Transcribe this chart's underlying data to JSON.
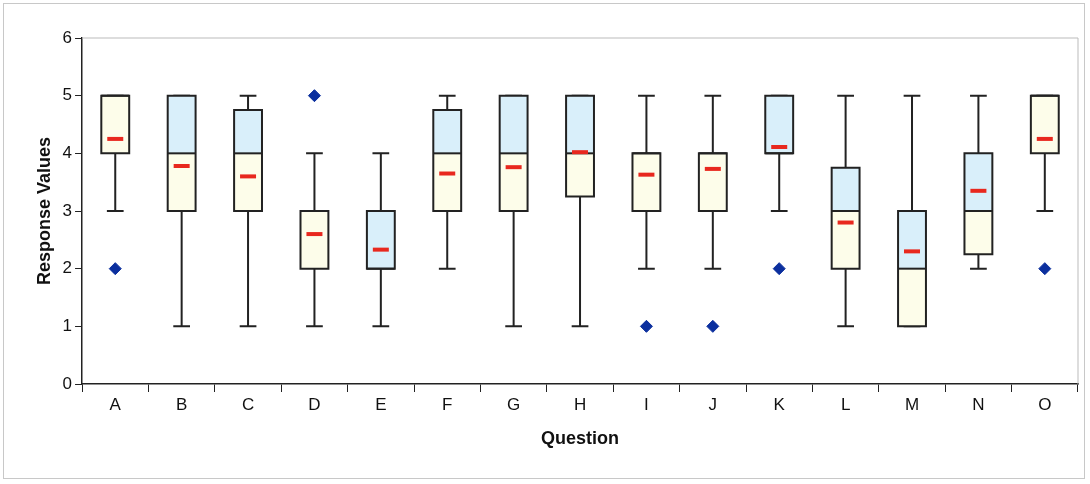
{
  "chart_data": {
    "type": "box",
    "xlabel": "Question",
    "ylabel": "Response Values",
    "categories": [
      "A",
      "B",
      "C",
      "D",
      "E",
      "F",
      "G",
      "H",
      "I",
      "J",
      "K",
      "L",
      "M",
      "N",
      "O"
    ],
    "ylim": [
      0,
      6
    ],
    "yticks": [
      0,
      1,
      2,
      3,
      4,
      5,
      6
    ],
    "grid": false,
    "legend": false,
    "series": [
      {
        "color": "#fdfdea",
        "boxes": [
          {
            "low": 3,
            "q1": 4,
            "median": 5,
            "q3": 5,
            "high": 5,
            "mean": 4.25,
            "outliers": [
              2
            ]
          },
          {
            "low": 1,
            "q1": 3,
            "median": 4,
            "q3": 5,
            "high": 5,
            "mean": 3.78
          },
          {
            "low": 1,
            "q1": 3,
            "median": 4,
            "q3": 4.75,
            "high": 5,
            "mean": 3.6
          },
          {
            "low": 1,
            "q1": 2,
            "median": 3,
            "q3": 3,
            "high": 4,
            "mean": 2.6,
            "outliers": [
              5
            ]
          },
          {
            "low": 1,
            "q1": 2,
            "median": 2,
            "q3": 3,
            "high": 4,
            "mean": 2.33
          },
          {
            "low": 2,
            "q1": 3,
            "median": 4,
            "q3": 4.75,
            "high": 5,
            "mean": 3.65
          },
          {
            "low": 1,
            "q1": 3,
            "median": 4,
            "q3": 5,
            "high": 5,
            "mean": 3.76
          },
          {
            "low": 1,
            "q1": 3.25,
            "median": 4,
            "q3": 5,
            "high": 5,
            "mean": 4.02
          },
          {
            "low": 2,
            "q1": 3,
            "median": 4,
            "q3": 4,
            "high": 5,
            "mean": 3.63,
            "outliers": [
              1
            ]
          },
          {
            "low": 2,
            "q1": 3,
            "median": 4,
            "q3": 4,
            "high": 5,
            "mean": 3.73,
            "outliers": [
              1
            ]
          },
          {
            "low": 3,
            "q1": 4,
            "median": 4,
            "q3": 5,
            "high": 5,
            "mean": 4.11,
            "outliers": [
              2
            ]
          },
          {
            "low": 1,
            "q1": 2,
            "median": 3,
            "q3": 3.75,
            "high": 5,
            "mean": 2.8
          },
          {
            "low": 1,
            "q1": 1,
            "median": 2,
            "q3": 3,
            "high": 5,
            "mean": 2.3
          },
          {
            "low": 2,
            "q1": 2.25,
            "median": 3,
            "q3": 4,
            "high": 5,
            "mean": 3.35
          },
          {
            "low": 3,
            "q1": 4,
            "median": 5,
            "q3": 5,
            "high": 5,
            "mean": 4.25,
            "outliers": [
              2
            ]
          }
        ]
      }
    ]
  }
}
